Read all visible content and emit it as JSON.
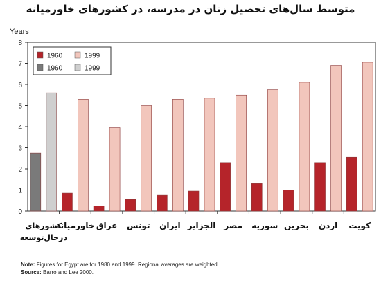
{
  "chart_data": {
    "type": "bar",
    "title": "متوسط سال‌های تحصیل زنان در مدرسه، در کشورهای خاورمیانه",
    "ylabel": "Years",
    "ylim": [
      0,
      8
    ],
    "yticks": [
      0,
      1,
      2,
      3,
      4,
      5,
      6,
      7,
      8
    ],
    "grid": false,
    "legend_position": "top-left",
    "categories": [
      "کشورهای درحال‌توسعه",
      "خاورمیانه",
      "عراق",
      "تونس",
      "ایران",
      "الجزایر",
      "مصر",
      "سوریه",
      "بحرین",
      "اردن",
      "کویت"
    ],
    "series": [
      {
        "name": "1960",
        "legend_group": "countries",
        "color": "#b5242a",
        "values": [
          null,
          0.85,
          0.25,
          0.55,
          0.75,
          0.95,
          2.3,
          1.3,
          1.0,
          2.3,
          2.55
        ]
      },
      {
        "name": "1999",
        "legend_group": "countries",
        "color": "#f2c6bc",
        "values": [
          null,
          5.3,
          3.95,
          5.0,
          5.3,
          5.35,
          5.5,
          5.75,
          6.1,
          6.9,
          7.05
        ]
      },
      {
        "name": "1960",
        "legend_group": "developing",
        "color": "#7a7a7a",
        "values": [
          2.75,
          null,
          null,
          null,
          null,
          null,
          null,
          null,
          null,
          null,
          null
        ]
      },
      {
        "name": "1999",
        "legend_group": "developing",
        "color": "#cfcfcf",
        "values": [
          5.6,
          null,
          null,
          null,
          null,
          null,
          null,
          null,
          null,
          null,
          null
        ]
      }
    ]
  },
  "notes": {
    "note_label": "Note:",
    "note_text": "Figures for Egypt are for 1980 and 1999. Regional averages are weighted.",
    "source_label": "Source:",
    "source_text": "Barro and Lee 2000."
  }
}
